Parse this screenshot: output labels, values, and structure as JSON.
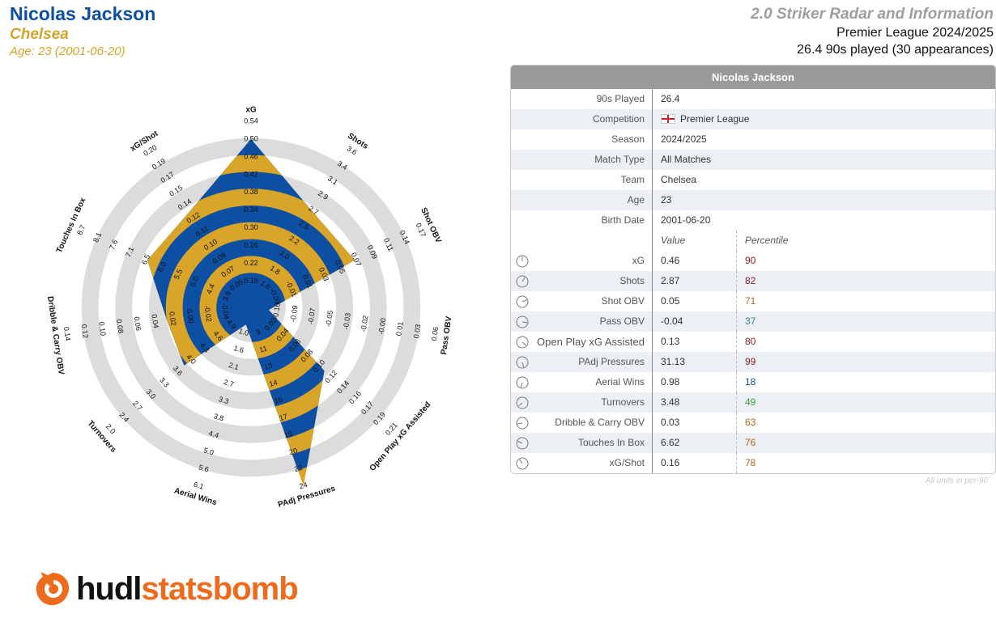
{
  "header": {
    "player_name": "Nicolas Jackson",
    "club": "Chelsea",
    "age": "Age: 23 (2001-06-20)",
    "report_title": "2.0 Striker Radar and Information",
    "competition_season": "Premier League 2024/2025",
    "played": "26.4 90s played (30 appearances)"
  },
  "colors": {
    "blue": "#0d4fa3",
    "gold": "#d8a529",
    "ring": "#dcdcdc",
    "orange": "#ee6b1e"
  },
  "info_table": {
    "title": "Nicolas Jackson",
    "rows": [
      {
        "label": "90s Played",
        "value": "26.4"
      },
      {
        "label": "Competition",
        "value": "Premier League"
      },
      {
        "label": "Season",
        "value": "2024/2025"
      },
      {
        "label": "Match Type",
        "value": "All Matches"
      },
      {
        "label": "Team",
        "value": "Chelsea"
      },
      {
        "label": "Age",
        "value": "23"
      },
      {
        "label": "Birth Date",
        "value": "2001-06-20"
      }
    ],
    "value_header": "Value",
    "percentile_header": "Percentile",
    "metrics": [
      {
        "label": "xG",
        "value": "0.46",
        "percentile": "90",
        "pct_color": "#8b1a1a"
      },
      {
        "label": "Shots",
        "value": "2.87",
        "percentile": "82",
        "pct_color": "#8b1a1a"
      },
      {
        "label": "Shot OBV",
        "value": "0.05",
        "percentile": "71",
        "pct_color": "#b5651d"
      },
      {
        "label": "Pass OBV",
        "value": "-0.04",
        "percentile": "37",
        "pct_color": "#2a8a8a"
      },
      {
        "label": "Open Play xG Assisted",
        "value": "0.13",
        "percentile": "80",
        "pct_color": "#8b1a1a"
      },
      {
        "label": "PAdj Pressures",
        "value": "31.13",
        "percentile": "99",
        "pct_color": "#8b1a1a"
      },
      {
        "label": "Aerial Wins",
        "value": "0.98",
        "percentile": "18",
        "pct_color": "#1f4e79"
      },
      {
        "label": "Turnovers",
        "value": "3.48",
        "percentile": "49",
        "pct_color": "#3a9a4a"
      },
      {
        "label": "Dribble & Carry OBV",
        "value": "0.03",
        "percentile": "63",
        "pct_color": "#b5651d"
      },
      {
        "label": "Touches In Box",
        "value": "6.62",
        "percentile": "76",
        "pct_color": "#b5651d"
      },
      {
        "label": "xG/Shot",
        "value": "0.16",
        "percentile": "78",
        "pct_color": "#b5651d"
      }
    ],
    "note": "All units in per-90"
  },
  "chart_data": {
    "type": "radar",
    "axes": [
      {
        "name": "xG",
        "ticks": [
          "0.18",
          "0.22",
          "0.26",
          "0.30",
          "0.34",
          "0.38",
          "0.42",
          "0.46",
          "0.50",
          "0.54"
        ],
        "value_fraction": 0.895
      },
      {
        "name": "Shots",
        "ticks": [
          "1.6",
          "1.8",
          "2.0",
          "2.2",
          "2.5",
          "2.7",
          "2.9",
          "3.1",
          "3.4",
          "3.6"
        ],
        "value_fraction": 0.57
      },
      {
        "name": "Shot OBV",
        "ticks": [
          "-0.03",
          "-0.01",
          "0.01",
          "0.03",
          "0.05",
          "0.07",
          "0.09",
          "0.11",
          "0.14",
          "0.17"
        ],
        "value_fraction": 0.57
      },
      {
        "name": "Pass OBV",
        "ticks": [
          "-0.10",
          "-0.09",
          "-0.07",
          "-0.05",
          "-0.03",
          "-0.02",
          "-0.00",
          "0.01",
          "0.03",
          "0.06"
        ],
        "value_fraction": 0.0
      },
      {
        "name": "Open Play xG Assisted",
        "ticks": [
          "0.02",
          "0.04",
          "0.06",
          "0.08",
          "0.10",
          "0.12",
          "0.14",
          "0.16",
          "0.17",
          "0.19",
          "0.21"
        ],
        "value_fraction": 0.47
      },
      {
        "name": "PAdj Pressures",
        "ticks": [
          "9",
          "11",
          "13",
          "14",
          "16",
          "17",
          "19",
          "20",
          "22",
          "24"
        ],
        "value_fraction": 1.0
      },
      {
        "name": "Aerial Wins",
        "ticks": [
          "1.0",
          "1.6",
          "2.1",
          "2.7",
          "3.3",
          "3.8",
          "4.4",
          "5.0",
          "5.6",
          "6.1"
        ],
        "value_fraction": 0.0
      },
      {
        "name": "Turnovers",
        "ticks": [
          "4.9",
          "4.6",
          "4.3",
          "4.0",
          "3.6",
          "3.3",
          "3.0",
          "2.7",
          "2.4",
          "2.0"
        ],
        "value_fraction": 0.42
      },
      {
        "name": "Dribble & Carry OBV",
        "ticks": [
          "-0.04",
          "-0.02",
          "0.00",
          "0.02",
          "0.04",
          "0.06",
          "0.08",
          "0.10",
          "0.12",
          "0.14"
        ],
        "value_fraction": 0.4
      },
      {
        "name": "Touches In Box",
        "ticks": [
          "3.9",
          "4.4",
          "5.0",
          "5.5",
          "6.0",
          "6.5",
          "7.1",
          "7.6",
          "8.1",
          "8.7"
        ],
        "value_fraction": 0.57
      },
      {
        "name": "xG/Shot",
        "ticks": [
          "0.05",
          "0.07",
          "0.08",
          "0.10",
          "0.11",
          "0.12",
          "0.14",
          "0.15",
          "0.17",
          "0.19",
          "0.20"
        ],
        "value_fraction": 0.57
      }
    ]
  },
  "logo": {
    "hudl": "hudl",
    "statsbomb": "statsbomb"
  }
}
